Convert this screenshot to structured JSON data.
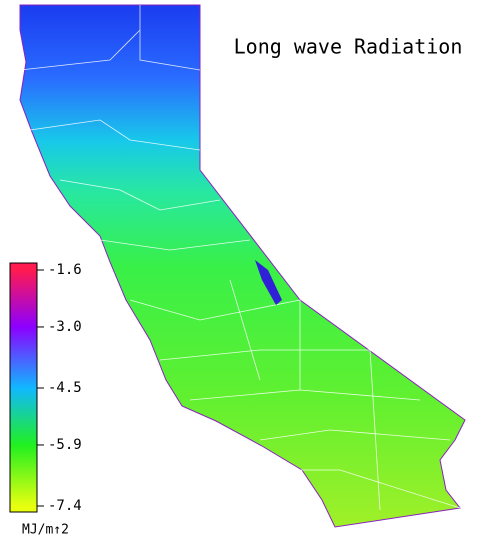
{
  "title": "Long wave Radiation",
  "colorbar": {
    "label": "MJ/m↑2",
    "lim": [
      -7.4,
      -1.6
    ],
    "ticks": [
      -1.6,
      {
        "value": -3.0,
        "label": "-3.0"
      },
      -4.5,
      -5.9,
      -7.4
    ],
    "colors": [
      "#ff1a50",
      "#8c00ff",
      "#10b8ff",
      "#20f020",
      "#e8ff10"
    ]
  }
}
